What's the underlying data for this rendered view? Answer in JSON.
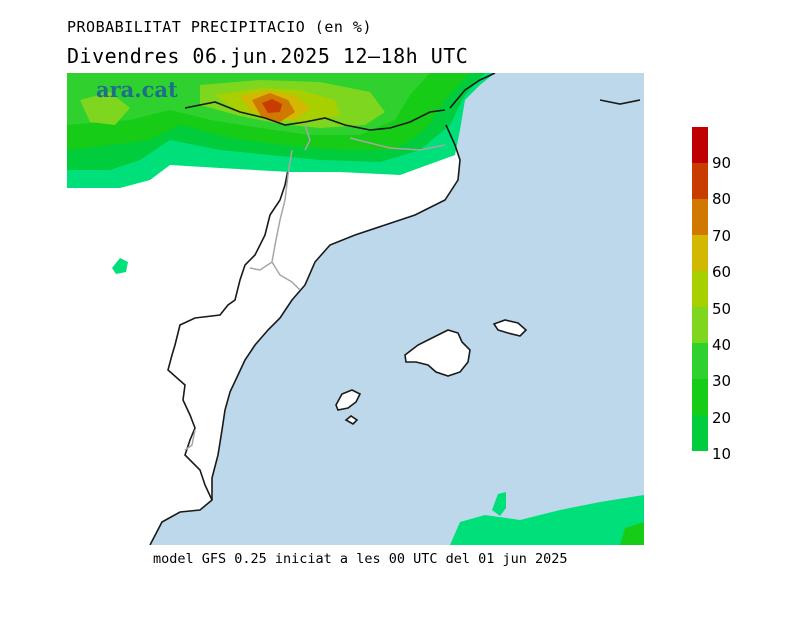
{
  "header": {
    "title": "PROBABILITAT PRECIPITACIO (en %)",
    "subtitle": "Divendres  06.jun.2025 12—18h UTC"
  },
  "logo": {
    "text": "ara.cat"
  },
  "colorbar": {
    "labels": [
      "10",
      "20",
      "30",
      "40",
      "50",
      "60",
      "70",
      "80",
      "90"
    ],
    "colors": [
      "#00e07a",
      "#00cc3c",
      "#16cc16",
      "#2ed12e",
      "#7ed61e",
      "#a8d000",
      "#d2b800",
      "#d07800",
      "#c83c00",
      "#c00000"
    ]
  },
  "map_colors": {
    "sea": "#bcd8ea",
    "land": "#ffffff",
    "coast": "#1a1a1a",
    "border": "#a6a6a6"
  },
  "footer": {
    "text": "model GFS 0.25 iniciat a les 00 UTC del 01 jun 2025"
  }
}
